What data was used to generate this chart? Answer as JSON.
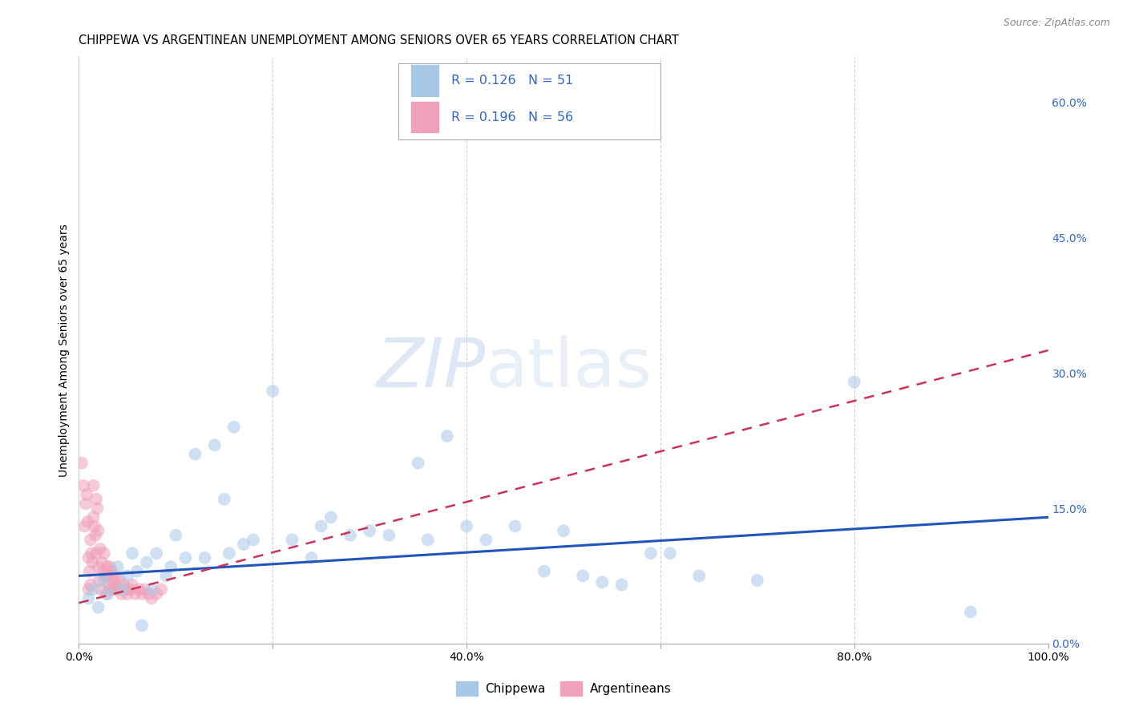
{
  "title": "CHIPPEWA VS ARGENTINEAN UNEMPLOYMENT AMONG SENIORS OVER 65 YEARS CORRELATION CHART",
  "source": "Source: ZipAtlas.com",
  "ylabel": "Unemployment Among Seniors over 65 years",
  "xlim": [
    0.0,
    1.0
  ],
  "ylim": [
    0.0,
    0.65
  ],
  "xtick_vals": [
    0.0,
    0.2,
    0.4,
    0.6,
    0.8,
    1.0
  ],
  "xticklabels": [
    "0.0%",
    "",
    "40.0%",
    "",
    "80.0%",
    "100.0%"
  ],
  "ytick_vals": [
    0.0,
    0.15,
    0.3,
    0.45,
    0.6
  ],
  "yticklabels": [
    "0.0%",
    "15.0%",
    "30.0%",
    "45.0%",
    "60.0%"
  ],
  "legend_r1": "0.126",
  "legend_n1": "51",
  "legend_r2": "0.196",
  "legend_n2": "56",
  "color_chippewa": "#a8c8e8",
  "color_argentinean": "#f0a0b8",
  "color_line_chippewa": "#2255bb",
  "color_line_argentinean": "#cc3355",
  "color_axis_right": "#3366cc",
  "color_rn_text": "#3366cc",
  "background_color": "#ffffff",
  "grid_color": "#cccccc",
  "watermark_zip": "ZIP",
  "watermark_atlas": "atlas",
  "chip_slope": 0.065,
  "chip_intercept": 0.075,
  "arg_slope": 0.28,
  "arg_intercept": 0.045,
  "title_fontsize": 10.5,
  "ylabel_fontsize": 10,
  "tick_fontsize": 10,
  "legend_fontsize": 11.5,
  "scatter_size": 130,
  "scatter_alpha": 0.55,
  "chippewa_x": [
    0.01,
    0.015,
    0.02,
    0.025,
    0.03,
    0.04,
    0.045,
    0.05,
    0.055,
    0.06,
    0.065,
    0.07,
    0.075,
    0.08,
    0.09,
    0.095,
    0.1,
    0.11,
    0.12,
    0.13,
    0.14,
    0.15,
    0.155,
    0.16,
    0.17,
    0.18,
    0.2,
    0.22,
    0.24,
    0.25,
    0.26,
    0.28,
    0.3,
    0.32,
    0.35,
    0.36,
    0.38,
    0.4,
    0.42,
    0.45,
    0.48,
    0.5,
    0.52,
    0.54,
    0.56,
    0.59,
    0.61,
    0.64,
    0.7,
    0.8,
    0.92
  ],
  "chippewa_y": [
    0.05,
    0.06,
    0.04,
    0.07,
    0.055,
    0.085,
    0.06,
    0.075,
    0.1,
    0.08,
    0.02,
    0.09,
    0.06,
    0.1,
    0.075,
    0.085,
    0.12,
    0.095,
    0.21,
    0.095,
    0.22,
    0.16,
    0.1,
    0.24,
    0.11,
    0.115,
    0.28,
    0.115,
    0.095,
    0.13,
    0.14,
    0.12,
    0.125,
    0.12,
    0.2,
    0.115,
    0.23,
    0.13,
    0.115,
    0.13,
    0.08,
    0.125,
    0.075,
    0.068,
    0.065,
    0.1,
    0.1,
    0.075,
    0.07,
    0.29,
    0.035
  ],
  "argentinean_x": [
    0.003,
    0.005,
    0.006,
    0.007,
    0.008,
    0.009,
    0.01,
    0.01,
    0.011,
    0.012,
    0.012,
    0.013,
    0.014,
    0.015,
    0.015,
    0.016,
    0.017,
    0.018,
    0.018,
    0.019,
    0.02,
    0.02,
    0.021,
    0.022,
    0.023,
    0.024,
    0.025,
    0.026,
    0.027,
    0.028,
    0.029,
    0.03,
    0.031,
    0.032,
    0.033,
    0.034,
    0.035,
    0.036,
    0.037,
    0.038,
    0.04,
    0.042,
    0.044,
    0.046,
    0.048,
    0.05,
    0.052,
    0.055,
    0.058,
    0.062,
    0.065,
    0.068,
    0.072,
    0.075,
    0.08,
    0.085
  ],
  "argentinean_y": [
    0.2,
    0.175,
    0.13,
    0.155,
    0.165,
    0.135,
    0.06,
    0.095,
    0.08,
    0.065,
    0.115,
    0.1,
    0.09,
    0.14,
    0.175,
    0.13,
    0.12,
    0.16,
    0.1,
    0.15,
    0.085,
    0.125,
    0.07,
    0.105,
    0.06,
    0.09,
    0.08,
    0.1,
    0.075,
    0.055,
    0.085,
    0.075,
    0.065,
    0.085,
    0.06,
    0.08,
    0.07,
    0.06,
    0.075,
    0.065,
    0.06,
    0.07,
    0.055,
    0.065,
    0.06,
    0.055,
    0.06,
    0.065,
    0.055,
    0.06,
    0.055,
    0.06,
    0.055,
    0.05,
    0.055,
    0.06
  ]
}
